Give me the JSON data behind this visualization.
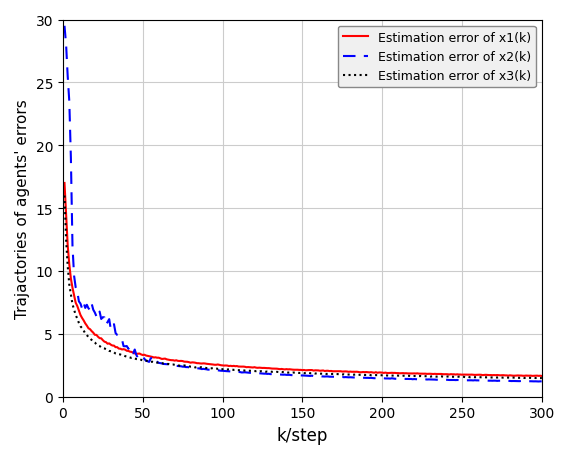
{
  "title": "",
  "xlabel": "k/step",
  "ylabel": "Trajactories of agents' errors",
  "xlim": [
    0,
    300
  ],
  "ylim": [
    0,
    30
  ],
  "yticks": [
    0,
    5,
    10,
    15,
    20,
    25,
    30
  ],
  "xticks": [
    0,
    50,
    100,
    150,
    200,
    250,
    300
  ],
  "legend": [
    {
      "label": "Estimation error of x1(k)",
      "color": "#ff0000",
      "linestyle": "solid",
      "linewidth": 1.5
    },
    {
      "label": "Estimation error of x2(k)",
      "color": "#0000ff",
      "linestyle": "dashed",
      "linewidth": 1.5
    },
    {
      "label": "Estimation error of x3(k)",
      "color": "#000000",
      "linestyle": "dotted",
      "linewidth": 1.5
    }
  ],
  "grid": true,
  "background_color": "#ffffff",
  "n_points": 300
}
